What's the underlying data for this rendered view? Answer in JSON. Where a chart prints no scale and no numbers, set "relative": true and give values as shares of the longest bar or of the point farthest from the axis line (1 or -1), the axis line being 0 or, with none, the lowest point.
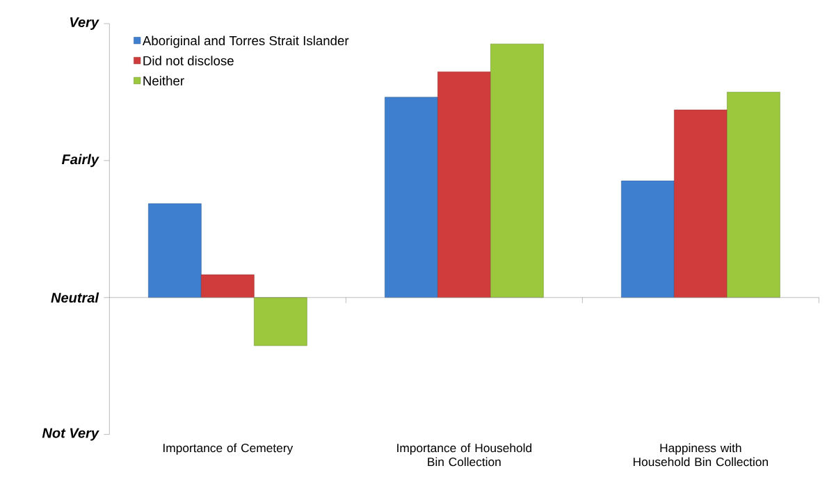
{
  "chart_data": {
    "type": "bar",
    "relative": true,
    "categories": [
      "Importance of Cemetery",
      "Importance of Household Bin Collection",
      "Happiness with Household Bin Collection"
    ],
    "series": [
      {
        "name": "Aboriginal and Torres Strait Islander",
        "color": "#3f7fd0",
        "values": [
          0.37,
          0.79,
          0.46
        ]
      },
      {
        "name": "Did not disclose",
        "color": "#d03c3c",
        "values": [
          0.09,
          0.89,
          0.74
        ]
      },
      {
        "name": "Neither",
        "color": "#9bc83c",
        "values": [
          -0.19,
          1,
          0.81
        ]
      }
    ],
    "annotations": [
      "Not Very",
      "Neutral",
      "Fairly",
      "Very"
    ],
    "legend": "top left",
    "grid": false
  }
}
